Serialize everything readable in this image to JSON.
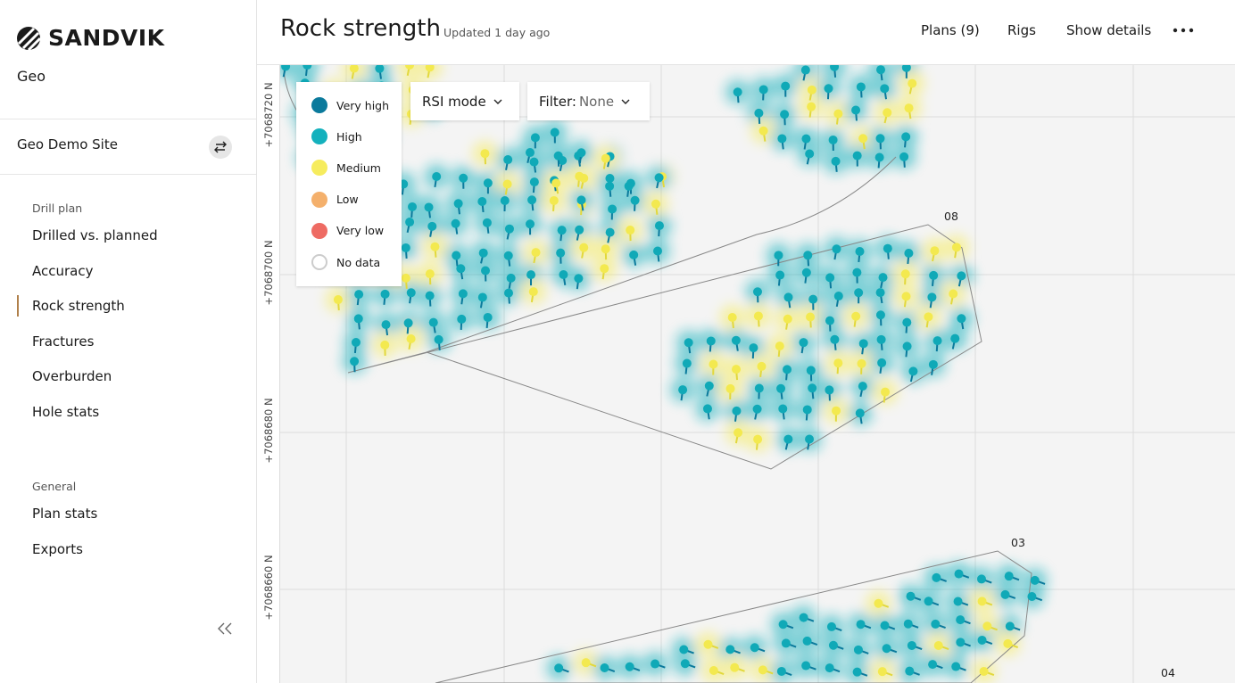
{
  "sidebar": {
    "brand": "SANDVIK",
    "app": "Geo",
    "site": "Geo Demo Site",
    "sections": [
      {
        "heading": "Drill plan",
        "items": [
          "Drilled vs. planned",
          "Accuracy",
          "Rock strength",
          "Fractures",
          "Overburden",
          "Hole stats"
        ]
      },
      {
        "heading": "General",
        "items": [
          "Plan stats",
          "Exports"
        ]
      }
    ]
  },
  "header": {
    "title": "Rock strength",
    "updated": "Updated 1 day ago",
    "actions": [
      "Plans (9)",
      "Rigs",
      "Show details"
    ]
  },
  "map": {
    "legend": [
      {
        "label": "Very high",
        "color": "#0b7a9c"
      },
      {
        "label": "High",
        "color": "#14b1bd"
      },
      {
        "label": "Medium",
        "color": "#f6ec5e"
      },
      {
        "label": "Low",
        "color": "#f4b06c"
      },
      {
        "label": "Very low",
        "color": "#ee6b63"
      },
      {
        "label": "No data",
        "color": "#ffffff"
      }
    ],
    "mode": "RSI mode",
    "filter": {
      "label": "Filter:",
      "value": "None"
    },
    "northings": [
      "+7068720 N",
      "+7068700 N",
      "+7068680 N",
      "+7068660 N"
    ],
    "plans": [
      "08",
      "03",
      "04"
    ]
  }
}
